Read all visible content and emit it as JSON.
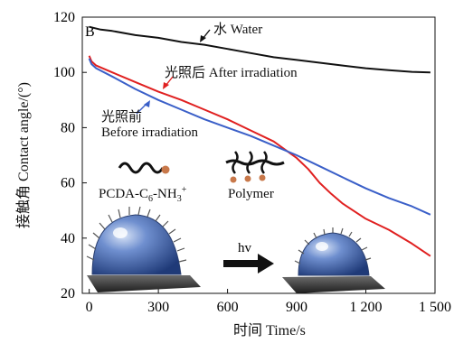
{
  "chart_data": {
    "type": "line",
    "panel_label": "B",
    "xlabel": "时间 Time/s",
    "ylabel": "接触角 Contact angle/(°)",
    "xlim": [
      -30,
      1500
    ],
    "ylim": [
      20,
      120
    ],
    "xticks": [
      0,
      300,
      600,
      900,
      1200,
      1500
    ],
    "xtick_labels": [
      "0",
      "300",
      "600",
      "900",
      "1 200",
      "1 500"
    ],
    "yticks": [
      20,
      40,
      60,
      80,
      100,
      120
    ],
    "ytick_labels": [
      "20",
      "40",
      "60",
      "80",
      "100",
      "120"
    ],
    "grid": false,
    "series": [
      {
        "name": "水 Water",
        "color": "#111111",
        "x": [
          0,
          50,
          100,
          200,
          300,
          400,
          500,
          600,
          700,
          800,
          900,
          1000,
          1100,
          1200,
          1300,
          1400,
          1480
        ],
        "y": [
          116.5,
          115.5,
          115,
          113.5,
          112.5,
          111,
          110,
          108.5,
          107,
          105.5,
          104.5,
          103.5,
          102.5,
          101.5,
          100.8,
          100.2,
          100
        ]
      },
      {
        "name": "光照后 After irradiation",
        "color": "#e02020",
        "x": [
          0,
          10,
          30,
          100,
          200,
          300,
          400,
          500,
          600,
          700,
          800,
          900,
          950,
          1000,
          1050,
          1100,
          1200,
          1300,
          1400,
          1480
        ],
        "y": [
          106,
          104,
          102.5,
          100,
          96.5,
          93,
          90,
          86.5,
          83,
          79,
          75,
          69,
          65,
          60,
          56,
          52.5,
          47,
          43,
          38,
          33.5
        ]
      },
      {
        "name": "光照前 Before irradiation",
        "color": "#3a5fc8",
        "x": [
          0,
          10,
          30,
          100,
          200,
          300,
          400,
          500,
          600,
          700,
          800,
          900,
          1000,
          1100,
          1200,
          1300,
          1400,
          1480
        ],
        "y": [
          105,
          103,
          101.5,
          98.5,
          94,
          90,
          86.5,
          83,
          80,
          77,
          73.5,
          70,
          66,
          62,
          58,
          54.5,
          51.5,
          48.5
        ]
      }
    ],
    "annotations": {
      "water": "水 Water",
      "after": "光照后 After irradiation",
      "before_cn": "光照前",
      "before_en": "Before irradiation",
      "monomer": "PCDA-C",
      "monomer_sub1": "6",
      "monomer_mid": "-NH",
      "monomer_sub2": "3",
      "monomer_sup": "+",
      "polymer": "Polymer",
      "hv": "hv"
    }
  },
  "colors": {
    "drop": "#3e62a8",
    "substrate": "#333333",
    "bead": "#c8784a",
    "arrow": "#111111"
  }
}
